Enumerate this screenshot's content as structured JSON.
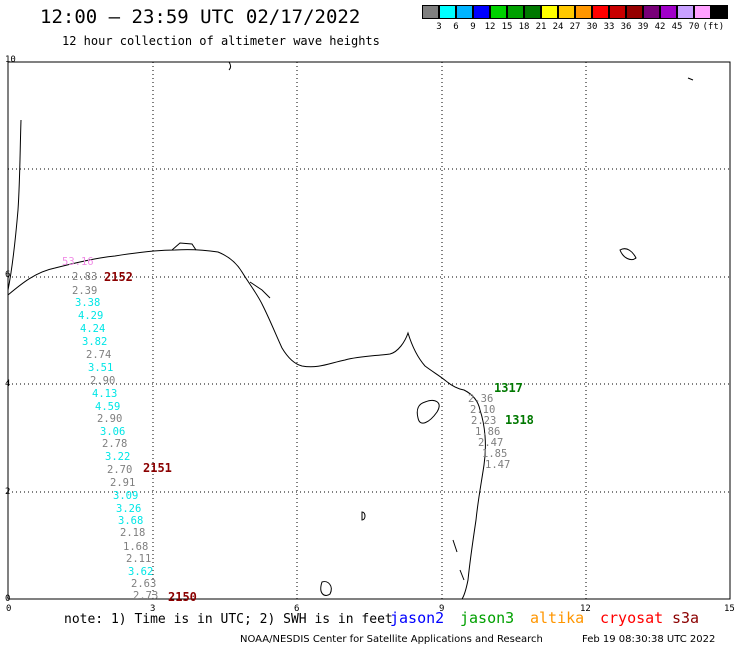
{
  "header": {
    "title": "12:00 – 23:59 UTC 02/17/2022",
    "subtitle": "12 hour collection of altimeter wave heights"
  },
  "legend": {
    "colors": [
      "#7f7f7f",
      "#00ffff",
      "#00b4ff",
      "#0000ff",
      "#00d200",
      "#00a000",
      "#007800",
      "#ffff00",
      "#ffc800",
      "#ff9600",
      "#ff0000",
      "#c80000",
      "#960000",
      "#780078",
      "#a000c8",
      "#c8a0ff",
      "#ffa0ff",
      "#000000"
    ],
    "labels": [
      "3",
      "6",
      "9",
      "12",
      "15",
      "18",
      "21",
      "24",
      "27",
      "30",
      "33",
      "36",
      "39",
      "42",
      "45",
      "70"
    ],
    "unit": "(ft)"
  },
  "axes": {
    "x_ticks": [
      "0",
      "3",
      "6",
      "9",
      "12",
      "15"
    ],
    "y_ticks": [
      "10",
      "6",
      "4",
      "2",
      "0"
    ]
  },
  "wave_heights": [
    {
      "text": "53.16",
      "color": "#f08ce6"
    },
    {
      "text": "2.83",
      "color": "#7f7f7f"
    },
    {
      "text": "2.39",
      "color": "#7f7f7f"
    },
    {
      "text": "3.38",
      "color": "#00e6e6"
    },
    {
      "text": "4.29",
      "color": "#00e6e6"
    },
    {
      "text": "4.24",
      "color": "#00e6e6"
    },
    {
      "text": "3.82",
      "color": "#00e6e6"
    },
    {
      "text": "2.74",
      "color": "#7f7f7f"
    },
    {
      "text": "3.51",
      "color": "#00e6e6"
    },
    {
      "text": "2.90",
      "color": "#7f7f7f"
    },
    {
      "text": "4.13",
      "color": "#00e6e6"
    },
    {
      "text": "4.59",
      "color": "#00e6e6"
    },
    {
      "text": "2.90",
      "color": "#7f7f7f"
    },
    {
      "text": "3.06",
      "color": "#00e6e6"
    },
    {
      "text": "2.78",
      "color": "#7f7f7f"
    },
    {
      "text": "3.22",
      "color": "#00e6e6"
    },
    {
      "text": "2.70",
      "color": "#7f7f7f"
    },
    {
      "text": "2.91",
      "color": "#7f7f7f"
    },
    {
      "text": "3.09",
      "color": "#00e6e6"
    },
    {
      "text": "3.26",
      "color": "#00e6e6"
    },
    {
      "text": "3.68",
      "color": "#00e6e6"
    },
    {
      "text": "2.18",
      "color": "#7f7f7f"
    },
    {
      "text": "1.68",
      "color": "#7f7f7f"
    },
    {
      "text": "2.11",
      "color": "#7f7f7f"
    },
    {
      "text": "3.62",
      "color": "#00e6e6"
    },
    {
      "text": "2.63",
      "color": "#7f7f7f"
    },
    {
      "text": "2.73",
      "color": "#7f7f7f"
    },
    {
      "text": "2.36",
      "color": "#7f7f7f"
    },
    {
      "text": "2.10",
      "color": "#7f7f7f"
    },
    {
      "text": "2.23",
      "color": "#7f7f7f"
    },
    {
      "text": "1.86",
      "color": "#7f7f7f"
    },
    {
      "text": "2.47",
      "color": "#7f7f7f"
    },
    {
      "text": "1.85",
      "color": "#7f7f7f"
    },
    {
      "text": "1.47",
      "color": "#7f7f7f"
    }
  ],
  "time_labels": [
    {
      "text": "2152",
      "color": "#8b0000"
    },
    {
      "text": "2151",
      "color": "#8b0000"
    },
    {
      "text": "2150",
      "color": "#8b0000"
    },
    {
      "text": "1317",
      "color": "#007800"
    },
    {
      "text": "1318",
      "color": "#007800"
    }
  ],
  "footer": {
    "note": "note: 1) Time is in UTC; 2) SWH is in feet",
    "satellites": [
      {
        "name": "jason2",
        "color": "#0000ff"
      },
      {
        "name": "jason3",
        "color": "#00a000"
      },
      {
        "name": "altika",
        "color": "#ff9600"
      },
      {
        "name": "cryosat",
        "color": "#ff0000"
      },
      {
        "name": "s3a",
        "color": "#8b0000"
      }
    ],
    "credit": "NOAA/NESDIS Center for Satellite Applications and Research",
    "timestamp": "Feb 19 08:30:38 UTC 2022"
  }
}
